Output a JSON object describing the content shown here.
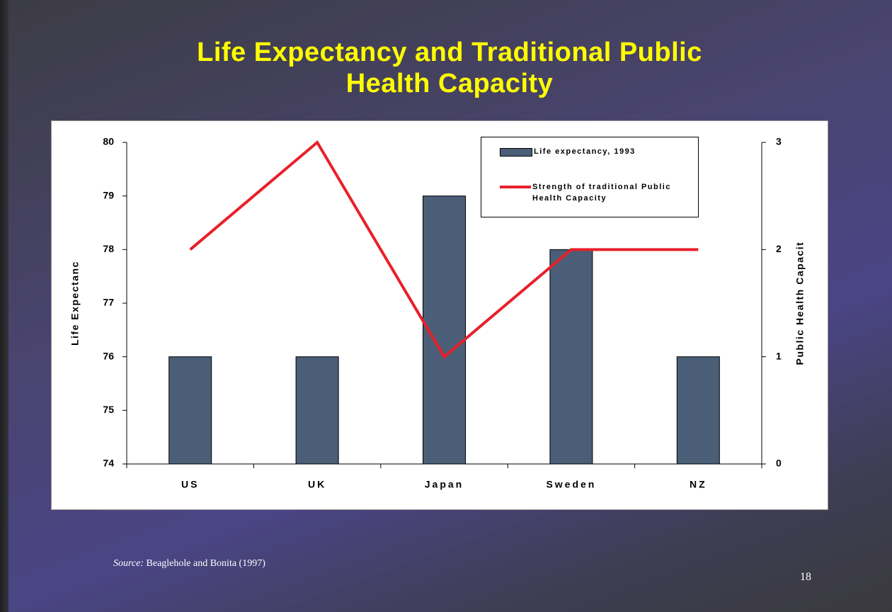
{
  "chart_data": {
    "type": "bar_line",
    "title": "Life Expectancy and Traditional Public Health Capacity",
    "ylabel": "Life Expectanc",
    "y2label": "Public Health Capacit",
    "categories": [
      "US",
      "UK",
      "Japan",
      "Sweden",
      "NZ"
    ],
    "series": [
      {
        "name": "Life expectancy, 1993",
        "type": "bar",
        "color": "#4a5e78",
        "values": [
          76,
          76,
          79,
          78,
          76
        ]
      },
      {
        "name": "Strength of traditional Public Health Capacity",
        "type": "line",
        "axis": "y2",
        "color": "#e8202a",
        "values": [
          2,
          3,
          1,
          2,
          2
        ]
      }
    ],
    "ylim": [
      74,
      80
    ],
    "yticks": [
      74,
      75,
      76,
      77,
      78,
      79,
      80
    ],
    "y2lim": [
      0,
      3
    ],
    "y2ticks": [
      0,
      1,
      2,
      3
    ],
    "legend": "top-right",
    "source_label": "Source:",
    "source": "Beaglehole and Bonita (1997)",
    "page_number": "18"
  }
}
